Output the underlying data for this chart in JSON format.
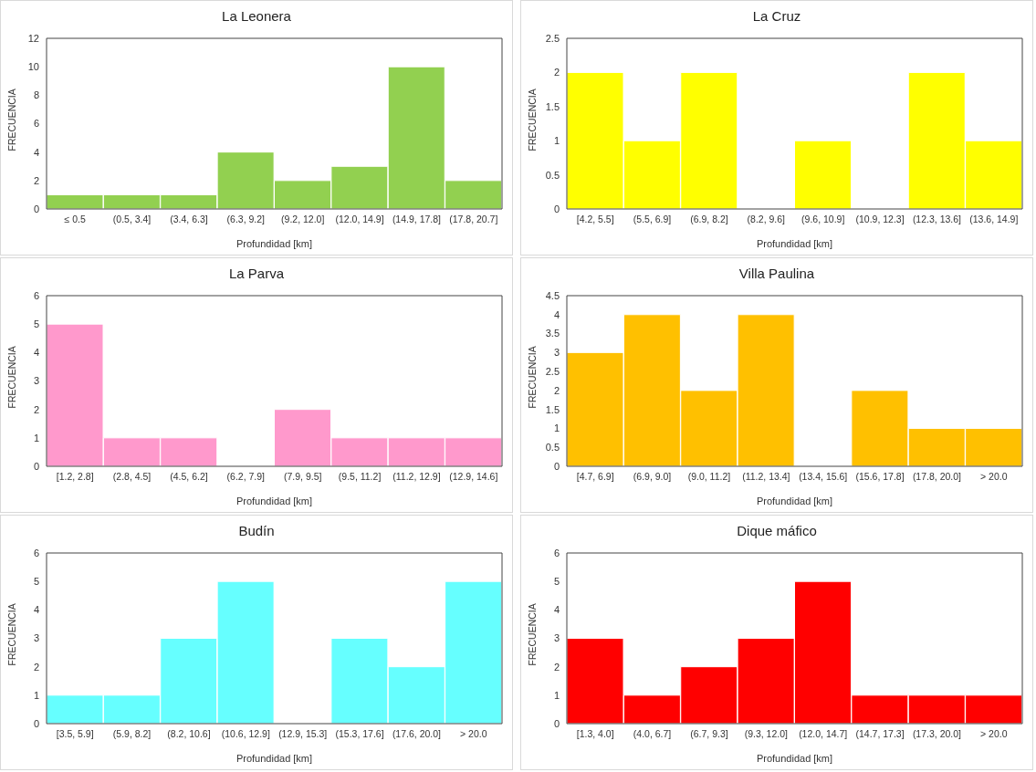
{
  "chart_data": [
    {
      "type": "bar",
      "title": "La Leonera",
      "xlabel": "Profundidad  [km]",
      "ylabel": "FRECUENCIA",
      "categories": [
        "≤ 0.5",
        "(0.5, 3.4]",
        "(3.4, 6.3]",
        "(6.3, 9.2]",
        "(9.2, 12.0]",
        "(12.0, 14.9]",
        "(14.9, 17.8]",
        "(17.8, 20.7]"
      ],
      "values": [
        1,
        1,
        1,
        4,
        2,
        3,
        10,
        2
      ],
      "color": "#92d050",
      "ylim": [
        0,
        12
      ],
      "yticks": [
        0,
        2,
        4,
        6,
        8,
        10,
        12
      ]
    },
    {
      "type": "bar",
      "title": "La Cruz",
      "xlabel": "Profundidad  [km]",
      "ylabel": "FRECUENCIA",
      "categories": [
        "[4.2, 5.5]",
        "(5.5, 6.9]",
        "(6.9, 8.2]",
        "(8.2, 9.6]",
        "(9.6, 10.9]",
        "(10.9, 12.3]",
        "(12.3, 13.6]",
        "(13.6, 14.9]"
      ],
      "values": [
        2,
        1,
        2,
        0,
        1,
        0,
        2,
        1
      ],
      "color": "#ffff00",
      "ylim": [
        0,
        2.5
      ],
      "yticks": [
        0,
        0.5,
        1,
        1.5,
        2,
        2.5
      ]
    },
    {
      "type": "bar",
      "title": "La Parva",
      "xlabel": "Profundidad  [km]",
      "ylabel": "FRECUENCIA",
      "categories": [
        "[1.2, 2.8]",
        "(2.8, 4.5]",
        "(4.5, 6.2]",
        "(6.2, 7.9]",
        "(7.9, 9.5]",
        "(9.5, 11.2]",
        "(11.2, 12.9]",
        "(12.9, 14.6]"
      ],
      "values": [
        5,
        1,
        1,
        0,
        2,
        1,
        1,
        1
      ],
      "color": "#ff99cc",
      "ylim": [
        0,
        6
      ],
      "yticks": [
        0,
        1,
        2,
        3,
        4,
        5,
        6
      ]
    },
    {
      "type": "bar",
      "title": "Villa Paulina",
      "xlabel": "Profundidad  [km]",
      "ylabel": "FRECUENCIA",
      "categories": [
        "[4.7, 6.9]",
        "(6.9, 9.0]",
        "(9.0, 11.2]",
        "(11.2, 13.4]",
        "(13.4, 15.6]",
        "(15.6, 17.8]",
        "(17.8, 20.0]",
        "> 20.0"
      ],
      "values": [
        3,
        4,
        2,
        4,
        0,
        2,
        1,
        1
      ],
      "color": "#ffc000",
      "ylim": [
        0,
        4.5
      ],
      "yticks": [
        0,
        0.5,
        1,
        1.5,
        2,
        2.5,
        3,
        3.5,
        4,
        4.5
      ]
    },
    {
      "type": "bar",
      "title": "Budín",
      "xlabel": "Profundidad  [km]",
      "ylabel": "FRECUENCIA",
      "categories": [
        "[3.5, 5.9]",
        "(5.9, 8.2]",
        "(8.2, 10.6]",
        "(10.6, 12.9]",
        "(12.9, 15.3]",
        "(15.3, 17.6]",
        "(17.6, 20.0]",
        "> 20.0"
      ],
      "values": [
        1,
        1,
        3,
        5,
        0,
        3,
        2,
        5
      ],
      "color": "#66ffff",
      "ylim": [
        0,
        6
      ],
      "yticks": [
        0,
        1,
        2,
        3,
        4,
        5,
        6
      ]
    },
    {
      "type": "bar",
      "title": "Dique máfico",
      "xlabel": "Profundidad  [km]",
      "ylabel": "FRECUENCIA",
      "categories": [
        "[1.3, 4.0]",
        "(4.0, 6.7]",
        "(6.7, 9.3]",
        "(9.3, 12.0]",
        "(12.0, 14.7]",
        "(14.7, 17.3]",
        "(17.3, 20.0]",
        "> 20.0"
      ],
      "values": [
        3,
        1,
        2,
        3,
        5,
        1,
        1,
        1
      ],
      "color": "#ff0000",
      "ylim": [
        0,
        6
      ],
      "yticks": [
        0,
        1,
        2,
        3,
        4,
        5,
        6
      ]
    }
  ]
}
